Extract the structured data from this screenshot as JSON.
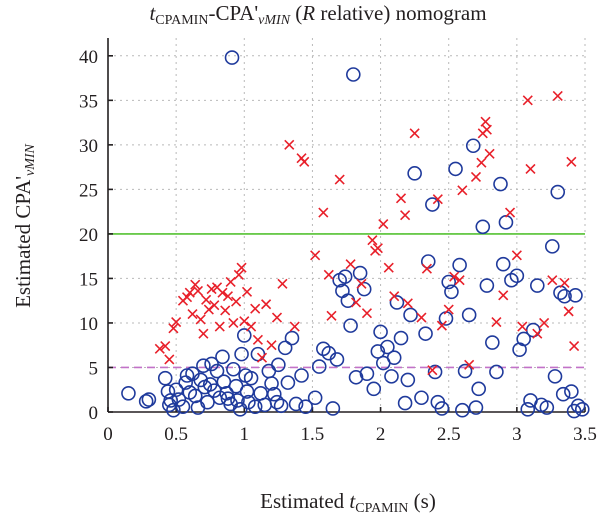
{
  "chart_data": {
    "type": "scatter",
    "title": {
      "t": "t",
      "sub1": "CPAMIN",
      "mid": "-CPA'",
      "sub2": "νMIN",
      "r_open": " (",
      "r": "R",
      "r_close": " relative) nomogram"
    },
    "xlabel": {
      "prefix": "Estimated ",
      "t": "t",
      "sub": "CPAMIN",
      "suffix": " (s)"
    },
    "ylabel": {
      "prefix": "Estimated CPA'",
      "sub": "νMIN"
    },
    "xlim": [
      0,
      3.5
    ],
    "ylim": [
      0,
      42
    ],
    "xticks": [
      "0",
      "0.5",
      "1",
      "1.5",
      "2",
      "2.5",
      "3",
      "3.5"
    ],
    "yticks": [
      "0",
      "5",
      "10",
      "15",
      "20",
      "25",
      "30",
      "35",
      "40"
    ],
    "grid": true,
    "reference_lines": [
      {
        "y": 20,
        "color": "#55c232",
        "style": "solid"
      },
      {
        "y": 5,
        "color": "#c272c8",
        "style": "dashed"
      }
    ],
    "series": [
      {
        "marker": "circle",
        "color": "#1f3a9c",
        "points": [
          [
            0.15,
            2.1
          ],
          [
            0.3,
            1.4
          ],
          [
            0.28,
            1.2
          ],
          [
            0.42,
            3.8
          ],
          [
            0.44,
            2.3
          ],
          [
            0.46,
            1.3
          ],
          [
            0.45,
            0.8
          ],
          [
            0.48,
            0.2
          ],
          [
            0.5,
            2.5
          ],
          [
            0.52,
            1.4
          ],
          [
            0.55,
            0.6
          ],
          [
            0.57,
            3.3
          ],
          [
            0.58,
            4.1
          ],
          [
            0.6,
            2.2
          ],
          [
            0.62,
            4.3
          ],
          [
            0.64,
            1.8
          ],
          [
            0.66,
            0.5
          ],
          [
            0.68,
            3.6
          ],
          [
            0.7,
            5.2
          ],
          [
            0.71,
            2.8
          ],
          [
            0.73,
            1.1
          ],
          [
            0.75,
            3.1
          ],
          [
            0.76,
            5.4
          ],
          [
            0.78,
            2.4
          ],
          [
            0.8,
            4.6
          ],
          [
            0.82,
            1.6
          ],
          [
            0.84,
            6.2
          ],
          [
            0.85,
            3.4
          ],
          [
            0.87,
            2.1
          ],
          [
            0.88,
            1.5
          ],
          [
            0.9,
            0.9
          ],
          [
            0.91,
            39.8
          ],
          [
            0.92,
            4.8
          ],
          [
            0.94,
            2.9
          ],
          [
            0.95,
            1.3
          ],
          [
            0.97,
            0.3
          ],
          [
            0.98,
            6.5
          ],
          [
            1.0,
            8.6
          ],
          [
            1.01,
            4.1
          ],
          [
            1.02,
            2.3
          ],
          [
            1.03,
            1.1
          ],
          [
            1.05,
            3.8
          ],
          [
            1.08,
            0.6
          ],
          [
            1.1,
            6.5
          ],
          [
            1.12,
            2.1
          ],
          [
            1.15,
            0.8
          ],
          [
            1.18,
            4.6
          ],
          [
            1.2,
            3.2
          ],
          [
            1.22,
            2.0
          ],
          [
            1.24,
            1.1
          ],
          [
            1.25,
            5.3
          ],
          [
            1.27,
            0.7
          ],
          [
            1.3,
            7.2
          ],
          [
            1.32,
            3.3
          ],
          [
            1.35,
            8.3
          ],
          [
            1.38,
            0.9
          ],
          [
            1.42,
            4.1
          ],
          [
            1.45,
            0.6
          ],
          [
            1.52,
            1.6
          ],
          [
            1.55,
            5.1
          ],
          [
            1.58,
            7.1
          ],
          [
            1.62,
            6.6
          ],
          [
            1.65,
            0.4
          ],
          [
            1.68,
            5.9
          ],
          [
            1.7,
            14.8
          ],
          [
            1.72,
            13.6
          ],
          [
            1.74,
            15.2
          ],
          [
            1.76,
            12.5
          ],
          [
            1.78,
            9.7
          ],
          [
            1.8,
            37.9
          ],
          [
            1.82,
            3.9
          ],
          [
            1.85,
            15.6
          ],
          [
            1.88,
            13.8
          ],
          [
            1.9,
            4.3
          ],
          [
            1.95,
            2.6
          ],
          [
            1.98,
            6.8
          ],
          [
            2.0,
            9.0
          ],
          [
            2.02,
            5.5
          ],
          [
            2.05,
            7.3
          ],
          [
            2.08,
            4.0
          ],
          [
            2.1,
            6.1
          ],
          [
            2.12,
            12.3
          ],
          [
            2.15,
            8.3
          ],
          [
            2.18,
            1.0
          ],
          [
            2.2,
            3.6
          ],
          [
            2.22,
            10.9
          ],
          [
            2.25,
            26.8
          ],
          [
            2.3,
            1.6
          ],
          [
            2.33,
            8.8
          ],
          [
            2.35,
            16.9
          ],
          [
            2.38,
            23.3
          ],
          [
            2.4,
            4.5
          ],
          [
            2.42,
            1.1
          ],
          [
            2.45,
            0.4
          ],
          [
            2.48,
            10.5
          ],
          [
            2.5,
            14.6
          ],
          [
            2.52,
            13.5
          ],
          [
            2.55,
            27.3
          ],
          [
            2.58,
            16.5
          ],
          [
            2.6,
            0.2
          ],
          [
            2.62,
            4.6
          ],
          [
            2.65,
            10.9
          ],
          [
            2.68,
            29.9
          ],
          [
            2.7,
            0.5
          ],
          [
            2.72,
            2.6
          ],
          [
            2.75,
            20.8
          ],
          [
            2.78,
            14.2
          ],
          [
            2.82,
            7.8
          ],
          [
            2.85,
            4.5
          ],
          [
            2.88,
            25.6
          ],
          [
            2.9,
            16.6
          ],
          [
            2.92,
            21.3
          ],
          [
            2.96,
            14.8
          ],
          [
            3.0,
            15.3
          ],
          [
            3.02,
            7.0
          ],
          [
            3.05,
            8.2
          ],
          [
            3.08,
            0.3
          ],
          [
            3.1,
            1.3
          ],
          [
            3.12,
            9.2
          ],
          [
            3.15,
            14.2
          ],
          [
            3.18,
            0.8
          ],
          [
            3.22,
            0.5
          ],
          [
            3.26,
            18.6
          ],
          [
            3.28,
            4.0
          ],
          [
            3.3,
            24.7
          ],
          [
            3.32,
            13.4
          ],
          [
            3.34,
            2.0
          ],
          [
            3.35,
            13.0
          ],
          [
            3.4,
            2.3
          ],
          [
            3.42,
            0.1
          ],
          [
            3.43,
            13.1
          ],
          [
            3.45,
            0.7
          ],
          [
            3.48,
            0.3
          ]
        ]
      },
      {
        "marker": "x",
        "color": "#e8202a",
        "points": [
          [
            0.38,
            7.1
          ],
          [
            0.42,
            7.4
          ],
          [
            0.45,
            5.9
          ],
          [
            0.48,
            9.4
          ],
          [
            0.5,
            10.1
          ],
          [
            0.55,
            12.5
          ],
          [
            0.58,
            12.9
          ],
          [
            0.6,
            13.4
          ],
          [
            0.62,
            11.0
          ],
          [
            0.64,
            14.3
          ],
          [
            0.66,
            13.6
          ],
          [
            0.68,
            10.4
          ],
          [
            0.7,
            8.8
          ],
          [
            0.72,
            12.6
          ],
          [
            0.74,
            11.5
          ],
          [
            0.76,
            13.8
          ],
          [
            0.78,
            12.0
          ],
          [
            0.8,
            14.0
          ],
          [
            0.82,
            9.6
          ],
          [
            0.84,
            13.4
          ],
          [
            0.86,
            11.4
          ],
          [
            0.88,
            13.0
          ],
          [
            0.9,
            14.6
          ],
          [
            0.92,
            10.0
          ],
          [
            0.94,
            12.4
          ],
          [
            0.96,
            15.4
          ],
          [
            0.98,
            16.2
          ],
          [
            1.0,
            10.2
          ],
          [
            1.02,
            13.5
          ],
          [
            1.05,
            9.6
          ],
          [
            1.08,
            11.6
          ],
          [
            1.1,
            8.1
          ],
          [
            1.13,
            6.1
          ],
          [
            1.16,
            12.1
          ],
          [
            1.2,
            7.5
          ],
          [
            1.24,
            10.6
          ],
          [
            1.28,
            14.4
          ],
          [
            1.33,
            30.0
          ],
          [
            1.37,
            9.6
          ],
          [
            1.42,
            28.5
          ],
          [
            1.44,
            28.1
          ],
          [
            1.52,
            17.6
          ],
          [
            1.58,
            22.4
          ],
          [
            1.62,
            15.4
          ],
          [
            1.64,
            10.8
          ],
          [
            1.7,
            26.1
          ],
          [
            1.78,
            16.6
          ],
          [
            1.82,
            12.3
          ],
          [
            1.86,
            14.4
          ],
          [
            1.9,
            11.1
          ],
          [
            1.94,
            19.3
          ],
          [
            1.96,
            18.1
          ],
          [
            1.98,
            18.4
          ],
          [
            2.02,
            21.1
          ],
          [
            2.06,
            16.2
          ],
          [
            2.1,
            13.0
          ],
          [
            2.15,
            24.0
          ],
          [
            2.18,
            22.1
          ],
          [
            2.2,
            12.2
          ],
          [
            2.25,
            31.3
          ],
          [
            2.3,
            10.6
          ],
          [
            2.34,
            16.1
          ],
          [
            2.38,
            4.7
          ],
          [
            2.42,
            23.9
          ],
          [
            2.45,
            9.7
          ],
          [
            2.5,
            11.5
          ],
          [
            2.54,
            15.2
          ],
          [
            2.58,
            14.8
          ],
          [
            2.6,
            24.9
          ],
          [
            2.65,
            5.3
          ],
          [
            2.7,
            26.4
          ],
          [
            2.74,
            28.0
          ],
          [
            2.75,
            31.3
          ],
          [
            2.77,
            32.6
          ],
          [
            2.78,
            31.7
          ],
          [
            2.8,
            29.0
          ],
          [
            2.85,
            10.1
          ],
          [
            2.9,
            13.1
          ],
          [
            2.95,
            22.4
          ],
          [
            3.0,
            17.6
          ],
          [
            3.04,
            9.6
          ],
          [
            3.08,
            35.0
          ],
          [
            3.1,
            27.3
          ],
          [
            3.15,
            8.8
          ],
          [
            3.2,
            10.0
          ],
          [
            3.26,
            14.8
          ],
          [
            3.3,
            35.5
          ],
          [
            3.35,
            14.5
          ],
          [
            3.38,
            11.3
          ],
          [
            3.4,
            28.1
          ],
          [
            3.42,
            7.4
          ]
        ]
      }
    ]
  }
}
